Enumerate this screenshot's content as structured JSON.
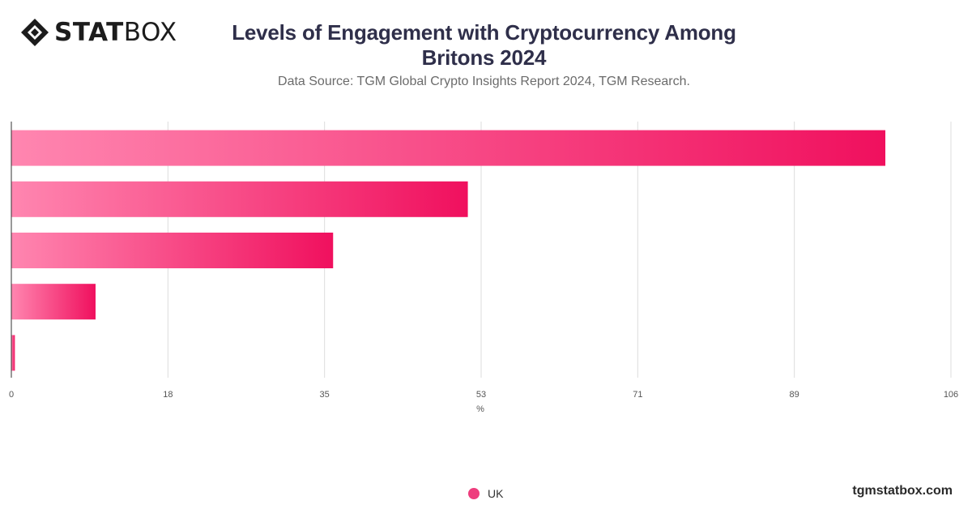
{
  "brand": {
    "logo_bold": "STAT",
    "logo_light": "BOX",
    "site": "tgmstatbox.com"
  },
  "header": {
    "title": "Levels of Engagement with Cryptocurrency Among Britons 2024",
    "subtitle": "Data Source: TGM Global Crypto Insights Report 2024, TGM Research."
  },
  "chart_data": {
    "type": "bar",
    "orientation": "horizontal",
    "categories": [
      "",
      "",
      "",
      "",
      ""
    ],
    "series": [
      {
        "name": "UK",
        "values": [
          98.6,
          51.5,
          36.3,
          9.5,
          0.4
        ]
      }
    ],
    "xlabel": "%",
    "ylabel": "",
    "xlim": [
      0,
      106
    ],
    "x_ticks": [
      "0",
      "18",
      "35",
      "53",
      "71",
      "89",
      "106"
    ],
    "grid": true,
    "legend_position": "bottom-center",
    "colors": {
      "bar_start": "#ff86b0",
      "bar_end": "#f0105e",
      "grid": "#dcdcdc",
      "axis": "#333333"
    }
  }
}
